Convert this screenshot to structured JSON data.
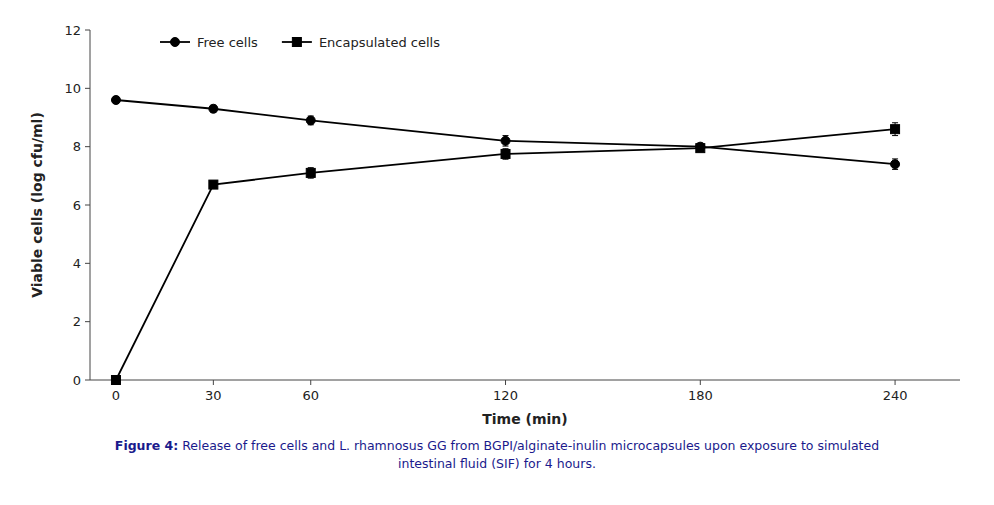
{
  "chart_data": {
    "type": "line",
    "xlabel": "Time (min)",
    "ylabel": "Viable cells (log cfu/ml)",
    "x": [
      0,
      30,
      60,
      120,
      180,
      240
    ],
    "series": [
      {
        "name": "Free cells",
        "color": "#000000",
        "marker": "circle",
        "line_style": "solid",
        "values": [
          9.6,
          9.3,
          8.9,
          8.2,
          8.0,
          7.4
        ],
        "errors": [
          0.12,
          0.12,
          0.15,
          0.18,
          0.12,
          0.18
        ]
      },
      {
        "name": "Encapsulated cells",
        "color": "#000000",
        "marker": "square",
        "line_style": "solid",
        "values": [
          0.0,
          6.7,
          7.1,
          7.75,
          7.95,
          8.6
        ],
        "errors": [
          0.0,
          0.12,
          0.18,
          0.18,
          0.12,
          0.22
        ]
      }
    ],
    "xlim": [
      -8,
      260
    ],
    "ylim": [
      0,
      12
    ],
    "xticks": [
      0,
      30,
      60,
      120,
      180,
      240
    ],
    "yticks": [
      0,
      2,
      4,
      6,
      8,
      10,
      12
    ],
    "grid": false,
    "legend": "upper left",
    "annotations": [
      "Figure 4: Release of free cells and L. rhamnosus GG from BGPI/alginate-inulin microcapsules upon exposure to simulated",
      "intestinal fluid (SIF) for 4 hours."
    ]
  }
}
